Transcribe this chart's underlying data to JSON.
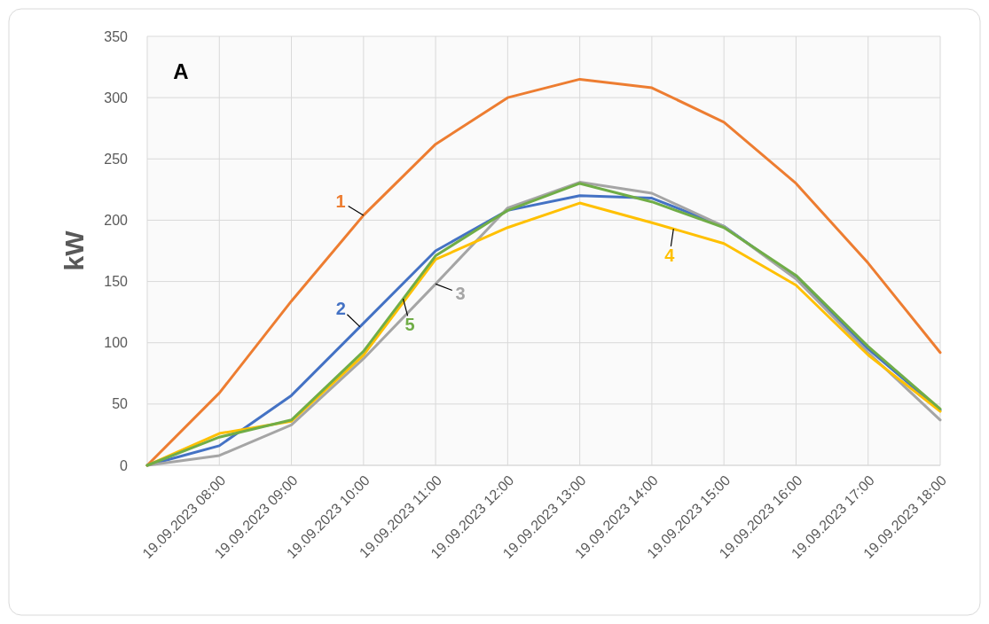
{
  "chart_data": {
    "type": "line",
    "ylabel": "kW",
    "annotations": [
      "A"
    ],
    "categories": [
      null,
      "19.09.2023 08:00",
      "19.09.2023 09:00",
      "19.09.2023 10:00",
      "19.09.2023 11:00",
      "19.09.2023 12:00",
      "19.09.2023 13:00",
      "19.09.2023 14:00",
      "19.09.2023 15:00",
      "19.09.2023 16:00",
      "19.09.2023 17:00",
      "19.09.2023 18:00"
    ],
    "ylim": [
      0,
      350
    ],
    "yticks": [
      0,
      50,
      100,
      150,
      200,
      250,
      300,
      350
    ],
    "grid": true,
    "series": [
      {
        "name": "1",
        "color": "#ed7d31",
        "values": [
          0,
          59,
          134,
          204,
          262,
          300,
          315,
          308,
          280,
          230,
          165,
          92
        ]
      },
      {
        "name": "2",
        "color": "#4472c4",
        "values": [
          0,
          16,
          57,
          116,
          175,
          208,
          220,
          218,
          195,
          153,
          95,
          45
        ]
      },
      {
        "name": "3",
        "color": "#a5a5a5",
        "values": [
          0,
          8,
          33,
          87,
          148,
          210,
          231,
          222,
          195,
          152,
          92,
          37
        ]
      },
      {
        "name": "4",
        "color": "#ffc000",
        "values": [
          0,
          26,
          36,
          90,
          168,
          194,
          214,
          198,
          181,
          147,
          90,
          44
        ]
      },
      {
        "name": "5",
        "color": "#70ad47",
        "values": [
          0,
          23,
          37,
          93,
          171,
          208,
          230,
          215,
          194,
          155,
          97,
          46
        ]
      }
    ]
  }
}
